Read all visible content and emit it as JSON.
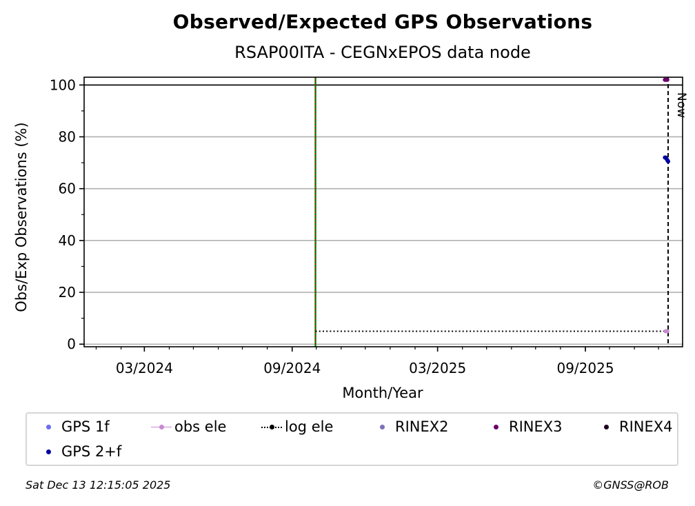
{
  "chart_data": {
    "type": "scatter",
    "title": "Observed/Expected GPS Observations",
    "subtitle": "RSAP00ITA - CEGNxEPOS data node",
    "xlabel": "Month/Year",
    "ylabel": "Obs/Exp Observations (%)",
    "xlim": [
      "2023-12-17",
      "2025-12-31"
    ],
    "ylim": [
      -1,
      103
    ],
    "yticks": [
      0,
      20,
      40,
      60,
      80,
      100
    ],
    "xticks": [
      {
        "date": "2024-03-01",
        "label": "03/2024"
      },
      {
        "date": "2024-09-01",
        "label": "09/2024"
      },
      {
        "date": "2025-03-01",
        "label": "03/2025"
      },
      {
        "date": "2025-09-01",
        "label": "09/2025"
      }
    ],
    "grid": "horizontal",
    "reference_line_y": 100,
    "event_line_date": "2024-09-30",
    "now_date": "2025-12-13",
    "now_label": "Now",
    "log_ele": {
      "name": "log ele",
      "from": "2024-09-30",
      "to": "2025-12-13",
      "value": 5
    },
    "series": [
      {
        "name": "GPS 1f",
        "color": "#6b6bf5",
        "points": []
      },
      {
        "name": "obs ele",
        "color": "#c88ad0",
        "points": [
          [
            "2025-12-10",
            5
          ],
          [
            "2025-12-12",
            5
          ]
        ]
      },
      {
        "name": "RINEX2",
        "color": "#7e6fb8",
        "points": []
      },
      {
        "name": "RINEX3",
        "color": "#6a006a",
        "points": [
          [
            "2025-12-09",
            102
          ],
          [
            "2025-12-10",
            102
          ],
          [
            "2025-12-11",
            102
          ],
          [
            "2025-12-12",
            102
          ]
        ]
      },
      {
        "name": "RINEX4",
        "color": "#200020",
        "points": []
      },
      {
        "name": "GPS 2+f",
        "color": "#0000a0",
        "points": [
          [
            "2025-12-09",
            72
          ],
          [
            "2025-12-10",
            72
          ],
          [
            "2025-12-11",
            71.5
          ],
          [
            "2025-12-12",
            71
          ],
          [
            "2025-12-13",
            70.5
          ]
        ]
      }
    ],
    "legend_position": "bottom"
  },
  "legend": [
    {
      "label": "GPS 1f",
      "glyph": "dot",
      "color": "#6b6bf5"
    },
    {
      "label": "obs ele",
      "glyph": "line-dot",
      "color": "#c88ad0"
    },
    {
      "label": "log ele",
      "glyph": "dotted-line",
      "color": "#000000"
    },
    {
      "label": "RINEX2",
      "glyph": "dot",
      "color": "#7e6fb8"
    },
    {
      "label": "RINEX3",
      "glyph": "dot",
      "color": "#6a006a"
    },
    {
      "label": "RINEX4",
      "glyph": "dot",
      "color": "#200020"
    },
    {
      "label": "GPS 2+f",
      "glyph": "dot",
      "color": "#0000a0"
    }
  ],
  "footer": {
    "timestamp": "Sat Dec 13 12:15:05 2025",
    "credit": "©GNSS@ROB"
  }
}
